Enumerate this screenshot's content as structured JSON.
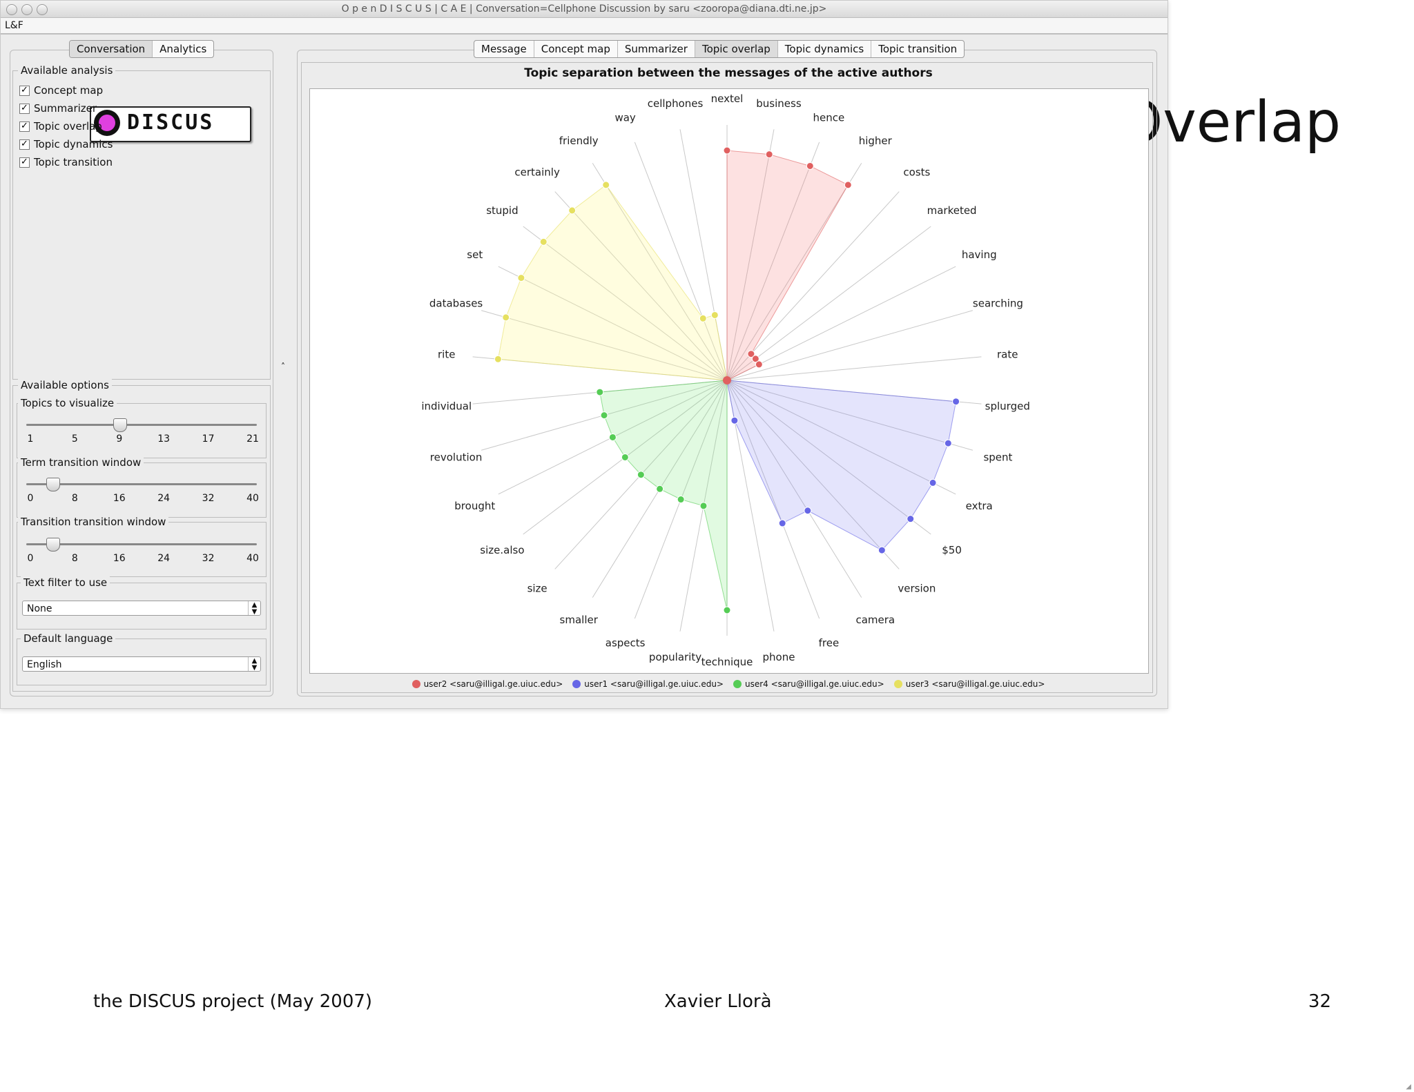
{
  "slide": {
    "logo_text": "DISCUS",
    "title": "Topic Overlap",
    "footer_left": "the DISCUS project (May 2007)",
    "footer_center": "Xavier Llorà",
    "footer_right": "32"
  },
  "window": {
    "title": "O p e n D I S C U S | C A E | Conversation=Cellphone Discussion by saru <zooropa@diana.dti.ne.jp>",
    "menu": "L&F"
  },
  "left_panel": {
    "tabs": [
      "Conversation",
      "Analytics"
    ],
    "analysis_title": "Available analysis",
    "analyses": [
      "Concept map",
      "Summarizer",
      "Topic overlap",
      "Topic dynamics",
      "Topic transition"
    ],
    "options_title": "Available options",
    "topics": {
      "title": "Topics to visualize",
      "ticks": [
        "1",
        "5",
        "9",
        "13",
        "17",
        "21"
      ],
      "value": 9,
      "min": 1,
      "max": 21
    },
    "term_window": {
      "title": "Term transition window",
      "ticks": [
        "0",
        "8",
        "16",
        "24",
        "32",
        "40"
      ],
      "value": 4,
      "min": 0,
      "max": 40
    },
    "transition_window": {
      "title": "Transition transition window",
      "ticks": [
        "0",
        "8",
        "16",
        "24",
        "32",
        "40"
      ],
      "value": 4,
      "min": 0,
      "max": 40
    },
    "text_filter": {
      "title": "Text filter to use",
      "value": "None"
    },
    "language": {
      "title": "Default language",
      "value": "English"
    }
  },
  "right_panel": {
    "tabs": [
      "Message",
      "Concept map",
      "Summarizer",
      "Topic overlap",
      "Topic dynamics",
      "Topic transition"
    ],
    "selected_tab": 3
  },
  "chart_data": {
    "type": "radar",
    "title": "Topic separation between the messages of the active authors",
    "axes": [
      "nextel",
      "business",
      "hence",
      "higher",
      "costs",
      "marketed",
      "having",
      "searching",
      "rate",
      "splurged",
      "spent",
      "extra",
      "$50",
      "version",
      "camera",
      "free",
      "phone",
      "technique",
      "popularity",
      "aspects",
      "smaller",
      "size",
      "size.also",
      "brought",
      "revolution",
      "individual",
      "rite",
      "databases",
      "set",
      "stupid",
      "certainly",
      "friendly",
      "way",
      "cellphones"
    ],
    "series": [
      {
        "name": "user2 <saru@illigal.ge.uiuc.edu>",
        "color": "#e06060",
        "fill": "rgba(245,120,120,0.22)",
        "values": {
          "nextel": 0.9,
          "business": 0.9,
          "hence": 0.9,
          "higher": 0.9,
          "costs": 0.14,
          "marketed": 0.14,
          "having": 0.14
        }
      },
      {
        "name": "user1 <saru@illigal.ge.uiuc.edu>",
        "color": "#6666e6",
        "fill": "rgba(120,120,240,0.2)",
        "values": {
          "splurged": 0.9,
          "spent": 0.9,
          "extra": 0.9,
          "$50": 0.9,
          "version": 0.9,
          "camera": 0.6,
          "free": 0.6,
          "phone": 0.16
        }
      },
      {
        "name": "user4 <saru@illigal.ge.uiuc.edu>",
        "color": "#55cc55",
        "fill": "rgba(120,230,120,0.22)",
        "values": {
          "technique": 0.9,
          "popularity": 0.5,
          "aspects": 0.5,
          "smaller": 0.5,
          "size": 0.5,
          "size.also": 0.5,
          "brought": 0.5,
          "revolution": 0.5,
          "individual": 0.5
        }
      },
      {
        "name": "user3 <saru@illigal.ge.uiuc.edu>",
        "color": "#e6e060",
        "fill": "rgba(255,250,150,0.3)",
        "values": {
          "rite": 0.9,
          "databases": 0.9,
          "set": 0.9,
          "stupid": 0.9,
          "certainly": 0.9,
          "friendly": 0.9,
          "way": 0.26,
          "cellphones": 0.26
        }
      }
    ]
  }
}
